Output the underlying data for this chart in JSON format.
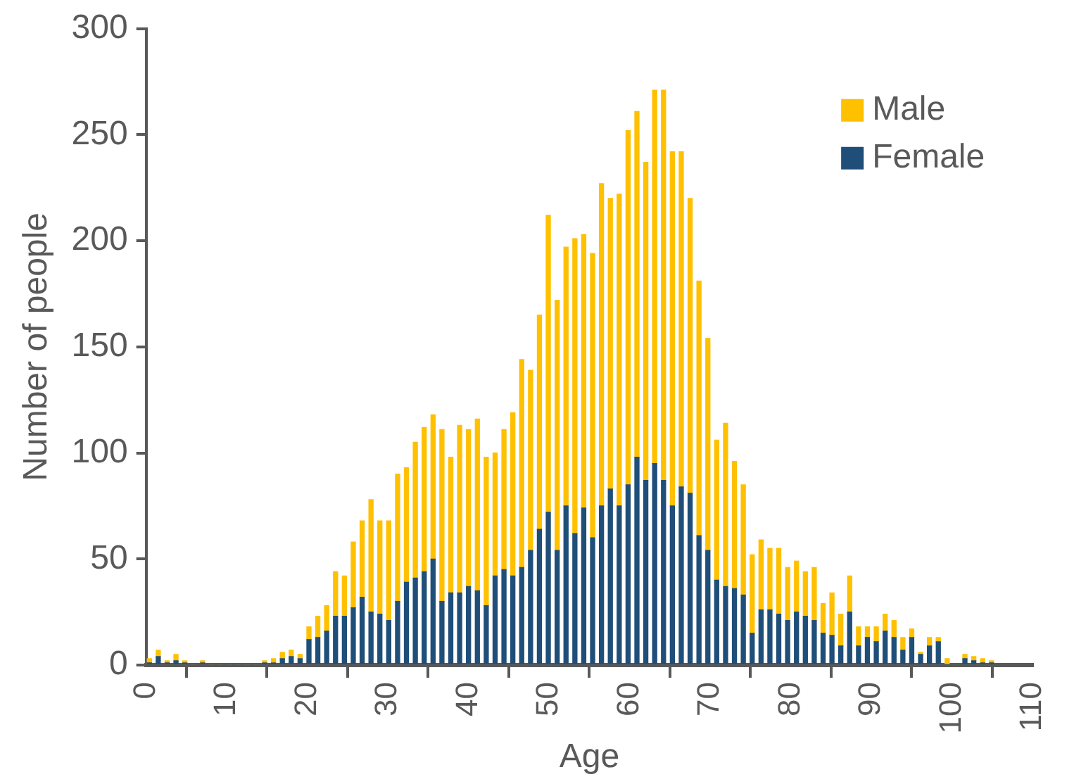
{
  "chart_data": {
    "type": "bar",
    "stacked": true,
    "xlabel": "Age",
    "ylabel": "Number of people",
    "x": [
      0.4,
      1.5,
      2.6,
      3.7,
      4.8,
      5.9,
      7.0,
      8.1,
      9.2,
      10.3,
      11.4,
      12.5,
      13.6,
      14.7,
      15.8,
      16.9,
      18.0,
      19.1,
      20.2,
      21.3,
      22.4,
      23.5,
      24.6,
      25.7,
      26.8,
      27.9,
      29.0,
      30.1,
      31.2,
      32.3,
      33.4,
      34.5,
      35.6,
      36.7,
      37.8,
      38.9,
      40.0,
      41.1,
      42.2,
      43.3,
      44.4,
      45.5,
      46.6,
      47.7,
      48.8,
      49.9,
      51.0,
      52.1,
      53.2,
      54.3,
      55.4,
      56.5,
      57.6,
      58.7,
      59.8,
      60.9,
      62.0,
      63.1,
      64.2,
      65.3,
      66.4,
      67.5,
      68.6,
      69.7,
      70.8,
      71.9,
      73.0,
      74.1,
      75.2,
      76.3,
      77.4,
      78.5,
      79.6,
      80.7,
      81.8,
      82.9,
      84.0,
      85.1,
      86.2,
      87.3,
      88.4,
      89.5,
      90.6,
      91.7,
      92.8,
      93.9,
      95.0,
      96.1,
      97.2,
      98.3,
      99.4,
      100.5,
      101.6,
      102.7,
      103.8,
      104.9
    ],
    "series": [
      {
        "name": "Female",
        "color": "#1f4e79",
        "values": [
          1,
          4,
          1,
          2,
          1,
          0,
          1,
          0,
          0,
          0,
          0,
          0,
          0,
          1,
          1,
          3,
          4,
          3,
          12,
          13,
          16,
          23,
          23,
          27,
          32,
          25,
          24,
          21,
          30,
          39,
          41,
          44,
          50,
          30,
          34,
          34,
          37,
          35,
          28,
          42,
          45,
          42,
          46,
          54,
          64,
          72,
          54,
          75,
          62,
          74,
          60,
          75,
          83,
          75,
          85,
          98,
          87,
          95,
          87,
          75,
          84,
          81,
          61,
          54,
          40,
          37,
          36,
          33,
          15,
          26,
          26,
          24,
          21,
          25,
          23,
          21,
          15,
          14,
          9,
          25,
          9,
          13,
          11,
          16,
          13,
          7,
          13,
          5,
          9,
          11,
          0,
          0,
          3,
          2,
          1,
          1
        ]
      },
      {
        "name": "Male",
        "color": "#ffc000",
        "values": [
          2,
          3,
          1,
          3,
          1,
          0,
          1,
          0,
          0,
          0,
          0,
          0,
          0,
          1,
          2,
          3,
          3,
          2,
          6,
          10,
          12,
          21,
          19,
          31,
          36,
          53,
          44,
          47,
          60,
          54,
          64,
          68,
          68,
          81,
          64,
          79,
          74,
          81,
          70,
          58,
          66,
          77,
          98,
          85,
          101,
          140,
          118,
          122,
          139,
          129,
          134,
          152,
          137,
          147,
          167,
          163,
          150,
          176,
          184,
          167,
          158,
          139,
          120,
          100,
          66,
          77,
          60,
          52,
          37,
          33,
          29,
          31,
          25,
          24,
          21,
          25,
          14,
          20,
          15,
          17,
          9,
          5,
          7,
          8,
          8,
          6,
          4,
          1,
          4,
          2,
          3,
          0,
          2,
          2,
          2,
          1
        ]
      }
    ],
    "xlim": [
      0,
      110
    ],
    "xticks": [
      0,
      10,
      20,
      30,
      40,
      50,
      60,
      70,
      80,
      90,
      100,
      110
    ],
    "ylim": [
      0,
      300
    ],
    "yticks": [
      0,
      50,
      100,
      150,
      200,
      250,
      300
    ],
    "grid": false,
    "legend": "top right"
  }
}
